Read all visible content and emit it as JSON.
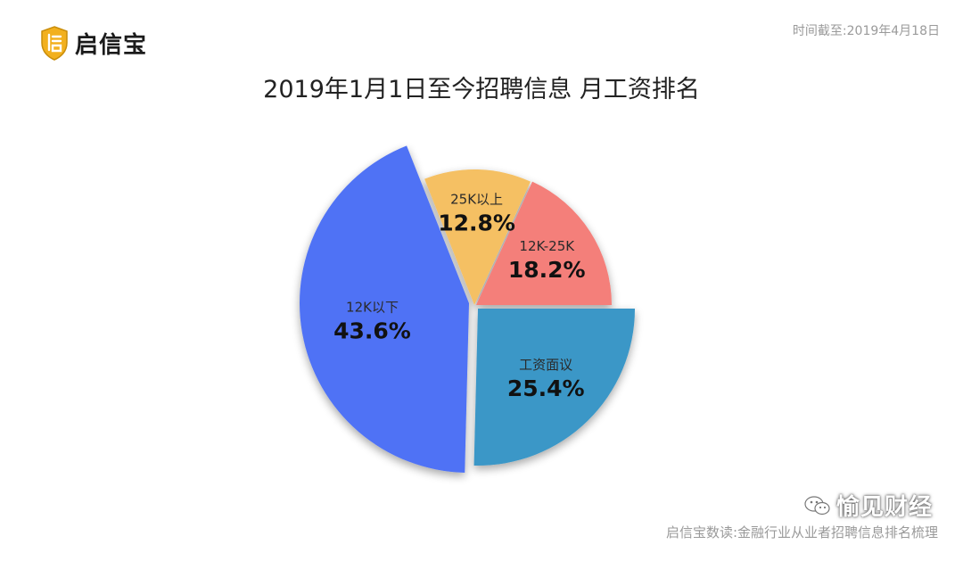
{
  "brand": {
    "name": "启信宝"
  },
  "date_note": "时间截至:2019年4月18日",
  "chart_data": {
    "type": "pie",
    "title": "2019年1月1日至今招聘信息 月工资排名",
    "slices": [
      {
        "label": "工资面议",
        "value": 25.4,
        "value_label": "25.4%",
        "color": "#3a97c7"
      },
      {
        "label": "12K以下",
        "value": 43.6,
        "value_label": "43.6%",
        "color": "#4f72f5"
      },
      {
        "label": "25K以上",
        "value": 12.8,
        "value_label": "12.8%",
        "color": "#f5c063"
      },
      {
        "label": "12K-25K",
        "value": 18.2,
        "value_label": "18.2%",
        "color": "#f47f7a"
      }
    ]
  },
  "footer": "启信宝数读:金融行业从业者招聘信息排名梳理",
  "watermark": {
    "text": "愉见财经"
  }
}
